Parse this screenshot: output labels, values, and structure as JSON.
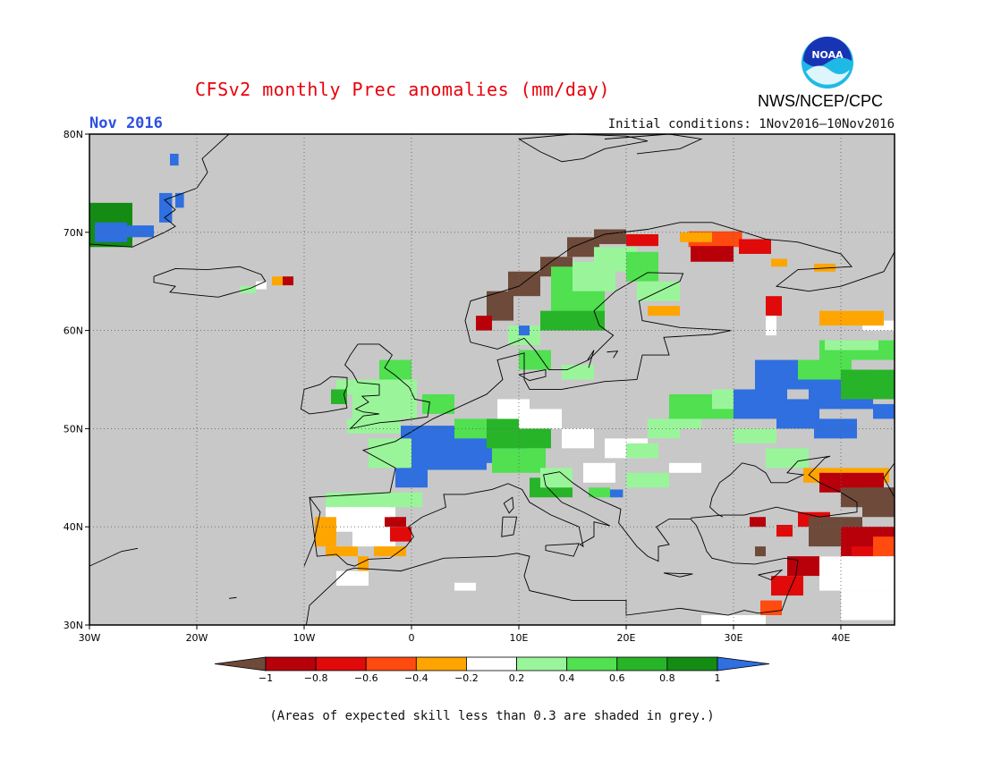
{
  "header": {
    "title": "CFSv2 monthly Prec anomalies (mm/day)",
    "month": "Nov 2016",
    "initial_conditions": "Initial conditions: 1Nov2016–10Nov2016",
    "organization": "NWS/NCEP/CPC",
    "logo_text": "NOAA",
    "logo_icon": "noaa-logo"
  },
  "map": {
    "lon_labels": [
      "30W",
      "20W",
      "10W",
      "0",
      "10E",
      "20E",
      "30E",
      "40E"
    ],
    "lat_labels": [
      "80N",
      "70N",
      "60N",
      "50N",
      "40N",
      "30N"
    ],
    "lon_range": [
      -30,
      45
    ],
    "lat_range": [
      30,
      80
    ],
    "grid": true,
    "background_color": "#c8c8c8",
    "not_shaded_color": "#ffffff"
  },
  "colorbar": {
    "tick_labels": [
      "−1",
      "−0.8",
      "−0.6",
      "−0.4",
      "−0.2",
      "0.2",
      "0.4",
      "0.6",
      "0.8",
      "1"
    ],
    "colors": [
      "#6e4a3a",
      "#b8000b",
      "#e00a0a",
      "#ff4a10",
      "#ffa500",
      "#ffffff",
      "#9af59a",
      "#50e050",
      "#28b428",
      "#148c14",
      "#2f6fe0"
    ]
  },
  "footnote": "(Areas of expected skill less than 0.3 are shaded in grey.)"
}
